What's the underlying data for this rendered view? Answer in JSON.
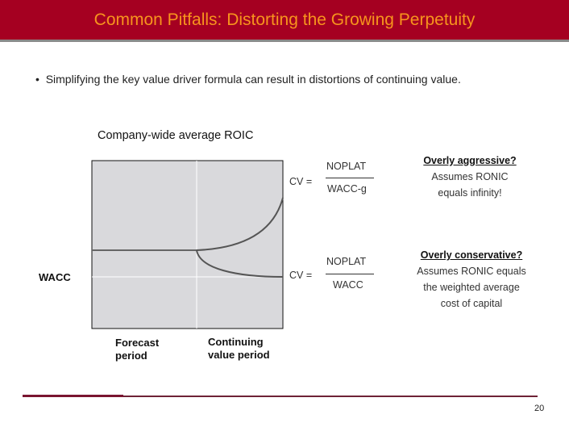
{
  "header": {
    "title": "Common Pitfalls: Distorting the Growing Perpetuity"
  },
  "bullet": {
    "marker": "•",
    "text": "Simplifying the key value driver formula can result in distortions of continuing value."
  },
  "diagram": {
    "y_label": "Company-wide average ROIC",
    "wacc_label": "WACC",
    "x_labels": {
      "forecast": [
        "Forecast",
        "period"
      ],
      "continuing": [
        "Continuing",
        "value period"
      ]
    },
    "formula_aggressive": {
      "lhs": "CV =",
      "numerator": "NOPLAT",
      "denominator": "WACC-g"
    },
    "formula_conservative": {
      "lhs": "CV =",
      "numerator": "NOPLAT",
      "denominator": "WACC"
    },
    "note_aggressive": {
      "heading": "Overly aggressive?",
      "lines": [
        "Assumes RONIC",
        "equals infinity!"
      ]
    },
    "note_conservative": {
      "heading": "Overly conservative?",
      "lines": [
        "Assumes RONIC equals",
        "the weighted average",
        "cost of capital"
      ]
    },
    "colors": {
      "plot_bg": "#d9d9dc",
      "curve": "#555555",
      "grid": "#ffffff"
    }
  },
  "footer": {
    "page_number": "20"
  },
  "colors": {
    "header_bg": "#a50021",
    "header_text": "#f7941d",
    "footer_rule": "#7a1530"
  }
}
